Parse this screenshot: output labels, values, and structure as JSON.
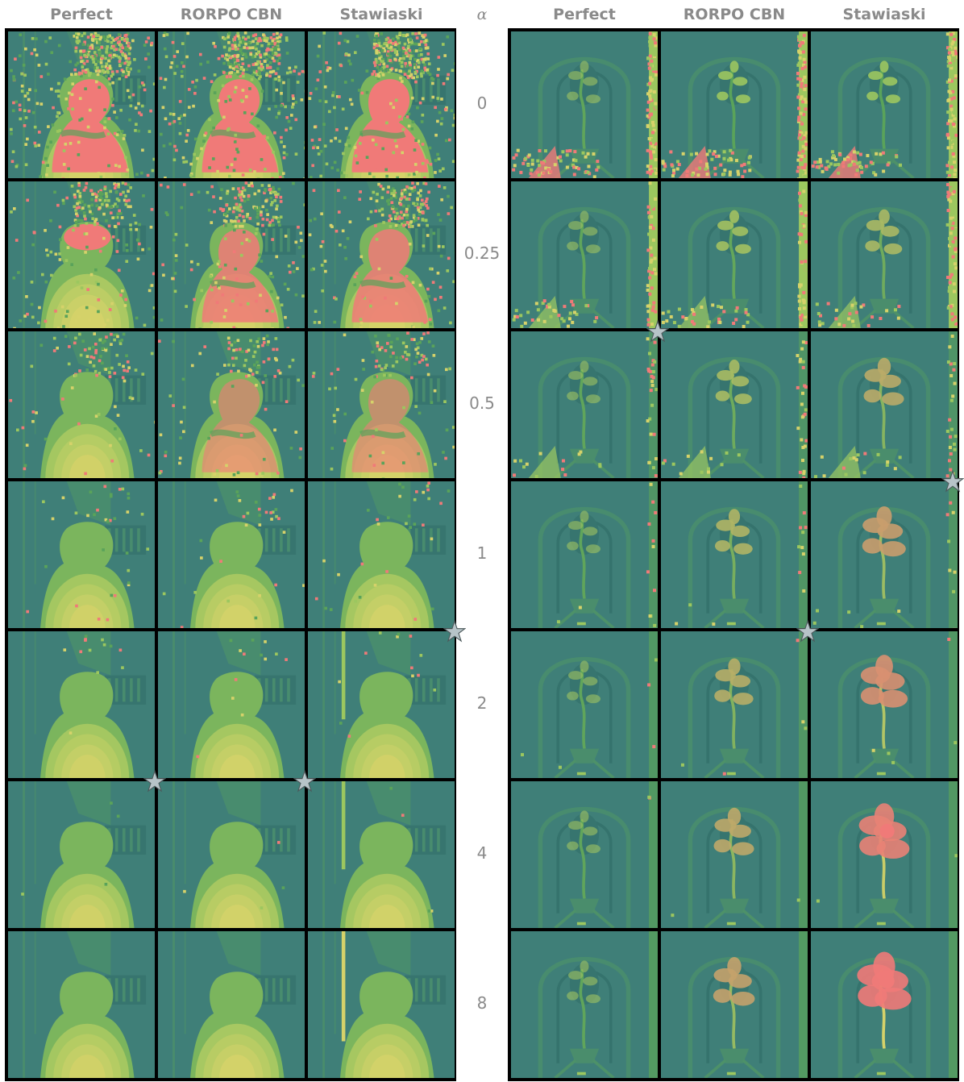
{
  "columns": [
    {
      "label": "Perfect"
    },
    {
      "label": "RORPO CBN"
    },
    {
      "label": "Stawiaski"
    }
  ],
  "alpha_label": "α",
  "rows": [
    {
      "alpha": "0"
    },
    {
      "alpha": "0.25"
    },
    {
      "alpha": "0.5"
    },
    {
      "alpha": "1"
    },
    {
      "alpha": "2"
    },
    {
      "alpha": "4"
    },
    {
      "alpha": "8"
    }
  ],
  "panels": [
    {
      "scene": "left-image-person",
      "columns": [
        "Perfect",
        "RORPO CBN",
        "Stawiaski"
      ]
    },
    {
      "scene": "right-image-plant",
      "columns": [
        "Perfect",
        "RORPO CBN",
        "Stawiaski"
      ]
    }
  ],
  "best_markers": [
    {
      "panel": 0,
      "row": 4,
      "col": 2
    },
    {
      "panel": 0,
      "row": 5,
      "col": 0
    },
    {
      "panel": 0,
      "row": 5,
      "col": 1
    },
    {
      "panel": 1,
      "row": 2,
      "col": 0
    },
    {
      "panel": 1,
      "row": 3,
      "col": 2
    },
    {
      "panel": 1,
      "row": 4,
      "col": 1
    }
  ],
  "colors": {
    "background_teal": "#3f7f78",
    "mid_green": "#5aa35a",
    "light_green": "#9cc75f",
    "yellow": "#d6d26a",
    "salmon": "#f07a78",
    "border": "#000000",
    "star_fill": "#b7c4c8"
  }
}
